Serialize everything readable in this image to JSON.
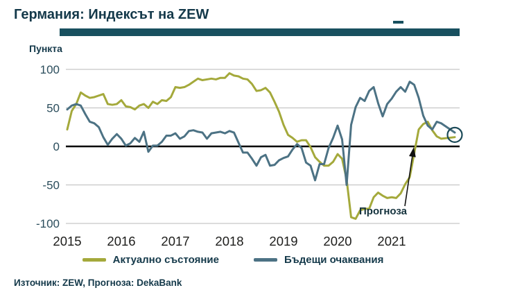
{
  "chart_data": {
    "type": "line",
    "title": "Германия: Индексът на ZEW",
    "ylabel": "Пункта",
    "ylim": [
      -100,
      100
    ],
    "yticks": [
      100,
      50,
      0,
      -50,
      -100
    ],
    "xticks": [
      "2015",
      "2016",
      "2017",
      "2018",
      "2019",
      "2020",
      "2021"
    ],
    "x_unit": "month",
    "x_range": [
      "2015-01",
      "2021-12"
    ],
    "grid": "horizontal",
    "legend_position": "bottom",
    "annotation": "Прогноза",
    "source": "Източник: ZEW, Прогноза: DekaBank",
    "colors": {
      "accent_dark": "#14394A",
      "title_bar": "#18505F",
      "grid": "#C6C6C6",
      "zero_line": "#000000",
      "tick_text": "#2B4D5C",
      "year_text": "#1D1D1B"
    },
    "series": [
      {
        "name": "Актуално състояние",
        "color": "#A4A93B",
        "values": [
          22,
          46,
          55,
          70,
          66,
          63,
          64,
          66,
          68,
          55,
          54,
          55,
          60,
          52,
          51,
          48,
          53,
          55,
          50,
          58,
          55,
          60,
          59,
          64,
          77,
          76,
          77,
          80,
          84,
          88,
          86,
          87,
          88,
          87,
          89,
          89,
          95,
          92,
          91,
          88,
          87,
          81,
          72,
          73,
          76,
          70,
          58,
          45,
          28,
          15,
          11,
          6,
          8,
          8,
          -1,
          -14,
          -20,
          -25,
          -25,
          -20,
          -10,
          -16,
          -43,
          -92,
          -94,
          -83,
          -81,
          -81,
          -66,
          -60,
          -64,
          -67,
          -66,
          -67,
          -61,
          -49,
          -40,
          -9,
          22,
          29,
          32,
          21,
          13,
          10
        ],
        "forecast": 12
      },
      {
        "name": "Бъдещи очаквания",
        "color": "#4C7284",
        "values": [
          48,
          53,
          55,
          53,
          42,
          32,
          30,
          25,
          12,
          2,
          10,
          16,
          10,
          1,
          4,
          11,
          6,
          19,
          -7,
          1,
          1,
          6,
          14,
          14,
          17,
          10,
          13,
          20,
          21,
          19,
          18,
          10,
          17,
          18,
          19,
          17,
          20,
          18,
          5,
          -8,
          -8,
          -16,
          -25,
          -14,
          -11,
          -25,
          -24,
          -18,
          -15,
          -13,
          -4,
          3,
          -2,
          -21,
          -25,
          -44,
          -23,
          -23,
          -2,
          11,
          27,
          9,
          -50,
          28,
          51,
          63,
          59,
          72,
          77,
          56,
          39,
          55,
          62,
          71,
          77,
          71,
          84,
          80,
          63,
          40,
          27,
          22,
          32,
          30
        ],
        "forecast": 18
      }
    ]
  }
}
